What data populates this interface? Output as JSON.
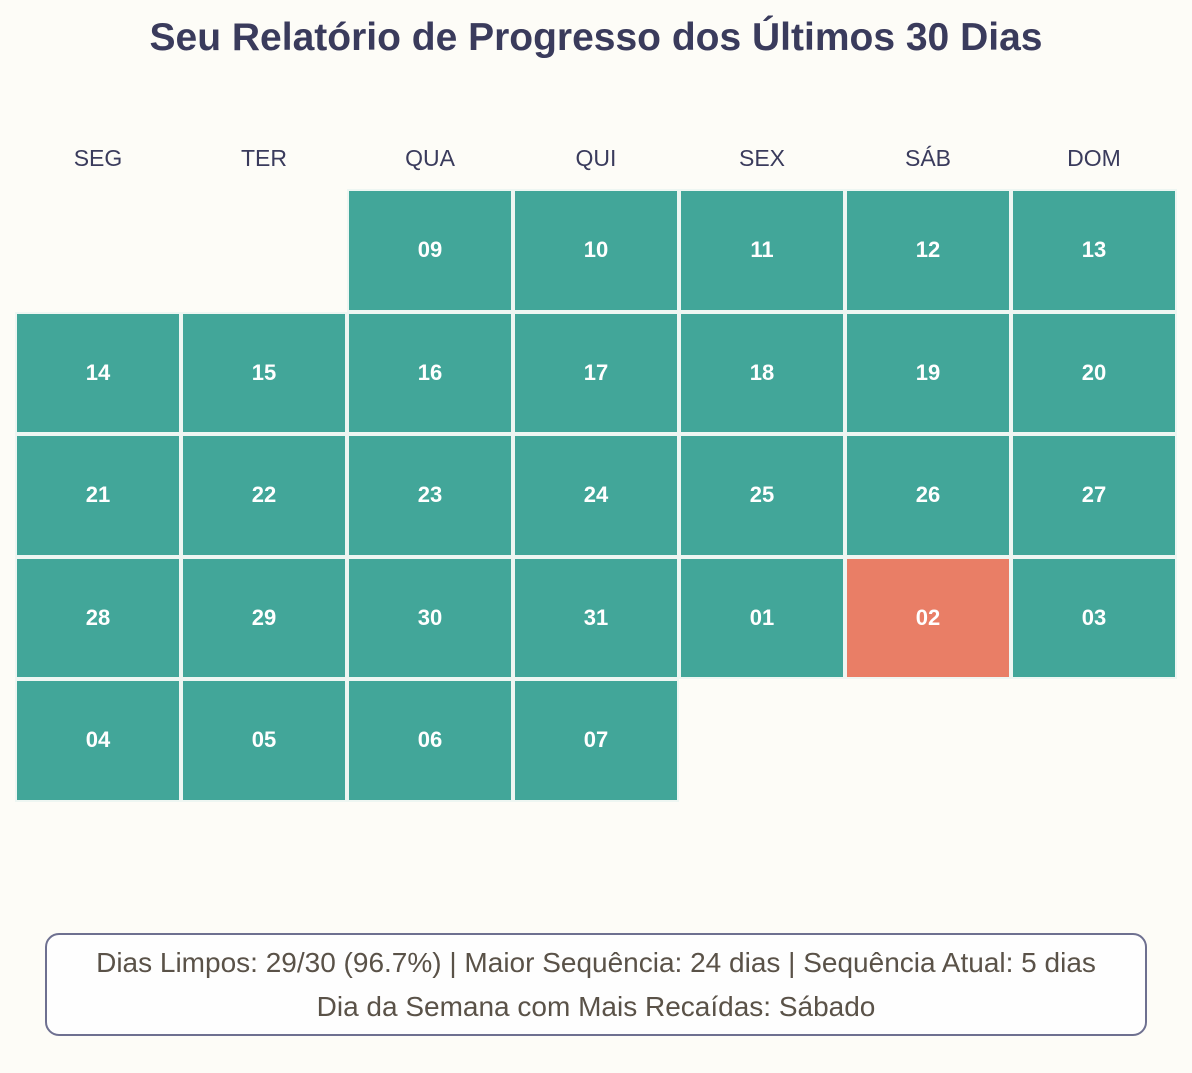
{
  "title": "Seu Relatório de Progresso dos Últimos 30 Dias",
  "weekdays": [
    "SEG",
    "TER",
    "QUA",
    "QUI",
    "SEX",
    "SÁB",
    "DOM"
  ],
  "colors": {
    "clean": "#42a699",
    "relapse": "#e97e66",
    "text": "#3a3b5c"
  },
  "chart_data": {
    "type": "heatmap",
    "title": "Seu Relatório de Progresso dos Últimos 30 Dias",
    "columns": [
      "SEG",
      "TER",
      "QUA",
      "QUI",
      "SEX",
      "SÁB",
      "DOM"
    ],
    "days": [
      {
        "label": "09",
        "week": 0,
        "weekday": 2,
        "status": "clean"
      },
      {
        "label": "10",
        "week": 0,
        "weekday": 3,
        "status": "clean"
      },
      {
        "label": "11",
        "week": 0,
        "weekday": 4,
        "status": "clean"
      },
      {
        "label": "12",
        "week": 0,
        "weekday": 5,
        "status": "clean"
      },
      {
        "label": "13",
        "week": 0,
        "weekday": 6,
        "status": "clean"
      },
      {
        "label": "14",
        "week": 1,
        "weekday": 0,
        "status": "clean"
      },
      {
        "label": "15",
        "week": 1,
        "weekday": 1,
        "status": "clean"
      },
      {
        "label": "16",
        "week": 1,
        "weekday": 2,
        "status": "clean"
      },
      {
        "label": "17",
        "week": 1,
        "weekday": 3,
        "status": "clean"
      },
      {
        "label": "18",
        "week": 1,
        "weekday": 4,
        "status": "clean"
      },
      {
        "label": "19",
        "week": 1,
        "weekday": 5,
        "status": "clean"
      },
      {
        "label": "20",
        "week": 1,
        "weekday": 6,
        "status": "clean"
      },
      {
        "label": "21",
        "week": 2,
        "weekday": 0,
        "status": "clean"
      },
      {
        "label": "22",
        "week": 2,
        "weekday": 1,
        "status": "clean"
      },
      {
        "label": "23",
        "week": 2,
        "weekday": 2,
        "status": "clean"
      },
      {
        "label": "24",
        "week": 2,
        "weekday": 3,
        "status": "clean"
      },
      {
        "label": "25",
        "week": 2,
        "weekday": 4,
        "status": "clean"
      },
      {
        "label": "26",
        "week": 2,
        "weekday": 5,
        "status": "clean"
      },
      {
        "label": "27",
        "week": 2,
        "weekday": 6,
        "status": "clean"
      },
      {
        "label": "28",
        "week": 3,
        "weekday": 0,
        "status": "clean"
      },
      {
        "label": "29",
        "week": 3,
        "weekday": 1,
        "status": "clean"
      },
      {
        "label": "30",
        "week": 3,
        "weekday": 2,
        "status": "clean"
      },
      {
        "label": "31",
        "week": 3,
        "weekday": 3,
        "status": "clean"
      },
      {
        "label": "01",
        "week": 3,
        "weekday": 4,
        "status": "clean"
      },
      {
        "label": "02",
        "week": 3,
        "weekday": 5,
        "status": "relapse"
      },
      {
        "label": "03",
        "week": 3,
        "weekday": 6,
        "status": "clean"
      },
      {
        "label": "04",
        "week": 4,
        "weekday": 0,
        "status": "clean"
      },
      {
        "label": "05",
        "week": 4,
        "weekday": 1,
        "status": "clean"
      },
      {
        "label": "06",
        "week": 4,
        "weekday": 2,
        "status": "clean"
      },
      {
        "label": "07",
        "week": 4,
        "weekday": 3,
        "status": "clean"
      }
    ]
  },
  "summary": {
    "line1": "Dias Limpos: 29/30 (96.7%)  |  Maior Sequência: 24 dias  |  Sequência Atual: 5 dias",
    "line2": "Dia da Semana com Mais Recaídas: Sábado"
  }
}
